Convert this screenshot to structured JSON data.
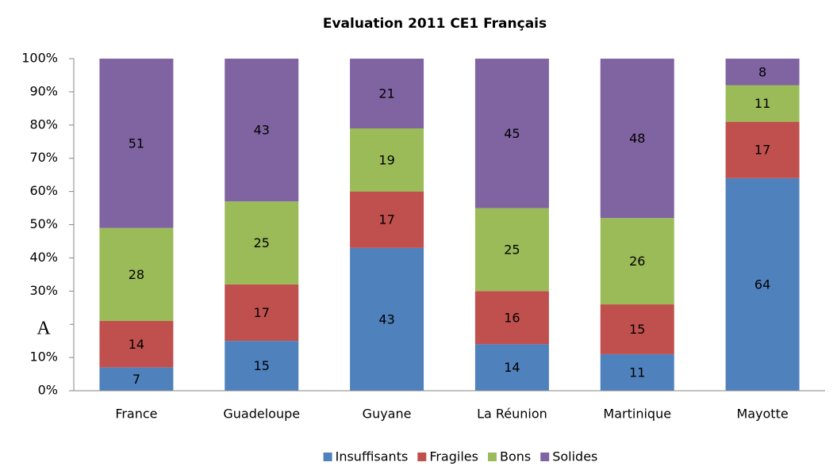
{
  "chart_data": {
    "type": "stacked_bar",
    "title": "Evaluation 2011 CE1 Français",
    "categories": [
      "France",
      "Guadeloupe",
      "Guyane",
      "La Réunion",
      "Martinique",
      "Mayotte"
    ],
    "series": [
      {
        "name": "Insuffisants",
        "color": "#4f81bd",
        "values": [
          7,
          15,
          43,
          14,
          11,
          64
        ]
      },
      {
        "name": "Fragiles",
        "color": "#c0504d",
        "values": [
          14,
          17,
          17,
          16,
          15,
          17
        ]
      },
      {
        "name": "Bons",
        "color": "#9bbb59",
        "values": [
          28,
          25,
          19,
          25,
          26,
          11
        ]
      },
      {
        "name": "Solides",
        "color": "#8064a2",
        "values": [
          51,
          43,
          21,
          45,
          48,
          8
        ]
      }
    ],
    "ylim": [
      0,
      100
    ],
    "yticks": [
      {
        "value": 0,
        "label": "0%"
      },
      {
        "value": 10,
        "label": "10%"
      },
      {
        "value": 20,
        "label": "20%"
      },
      {
        "value": 30,
        "label": "30%"
      },
      {
        "value": 40,
        "label": "40%"
      },
      {
        "value": 50,
        "label": "50%"
      },
      {
        "value": 60,
        "label": "60%"
      },
      {
        "value": 70,
        "label": "70%"
      },
      {
        "value": 80,
        "label": "80%"
      },
      {
        "value": 90,
        "label": "90%"
      },
      {
        "value": 100,
        "label": "100%"
      }
    ],
    "grid": false,
    "legend": "bottom",
    "annotations": [
      "A"
    ]
  }
}
